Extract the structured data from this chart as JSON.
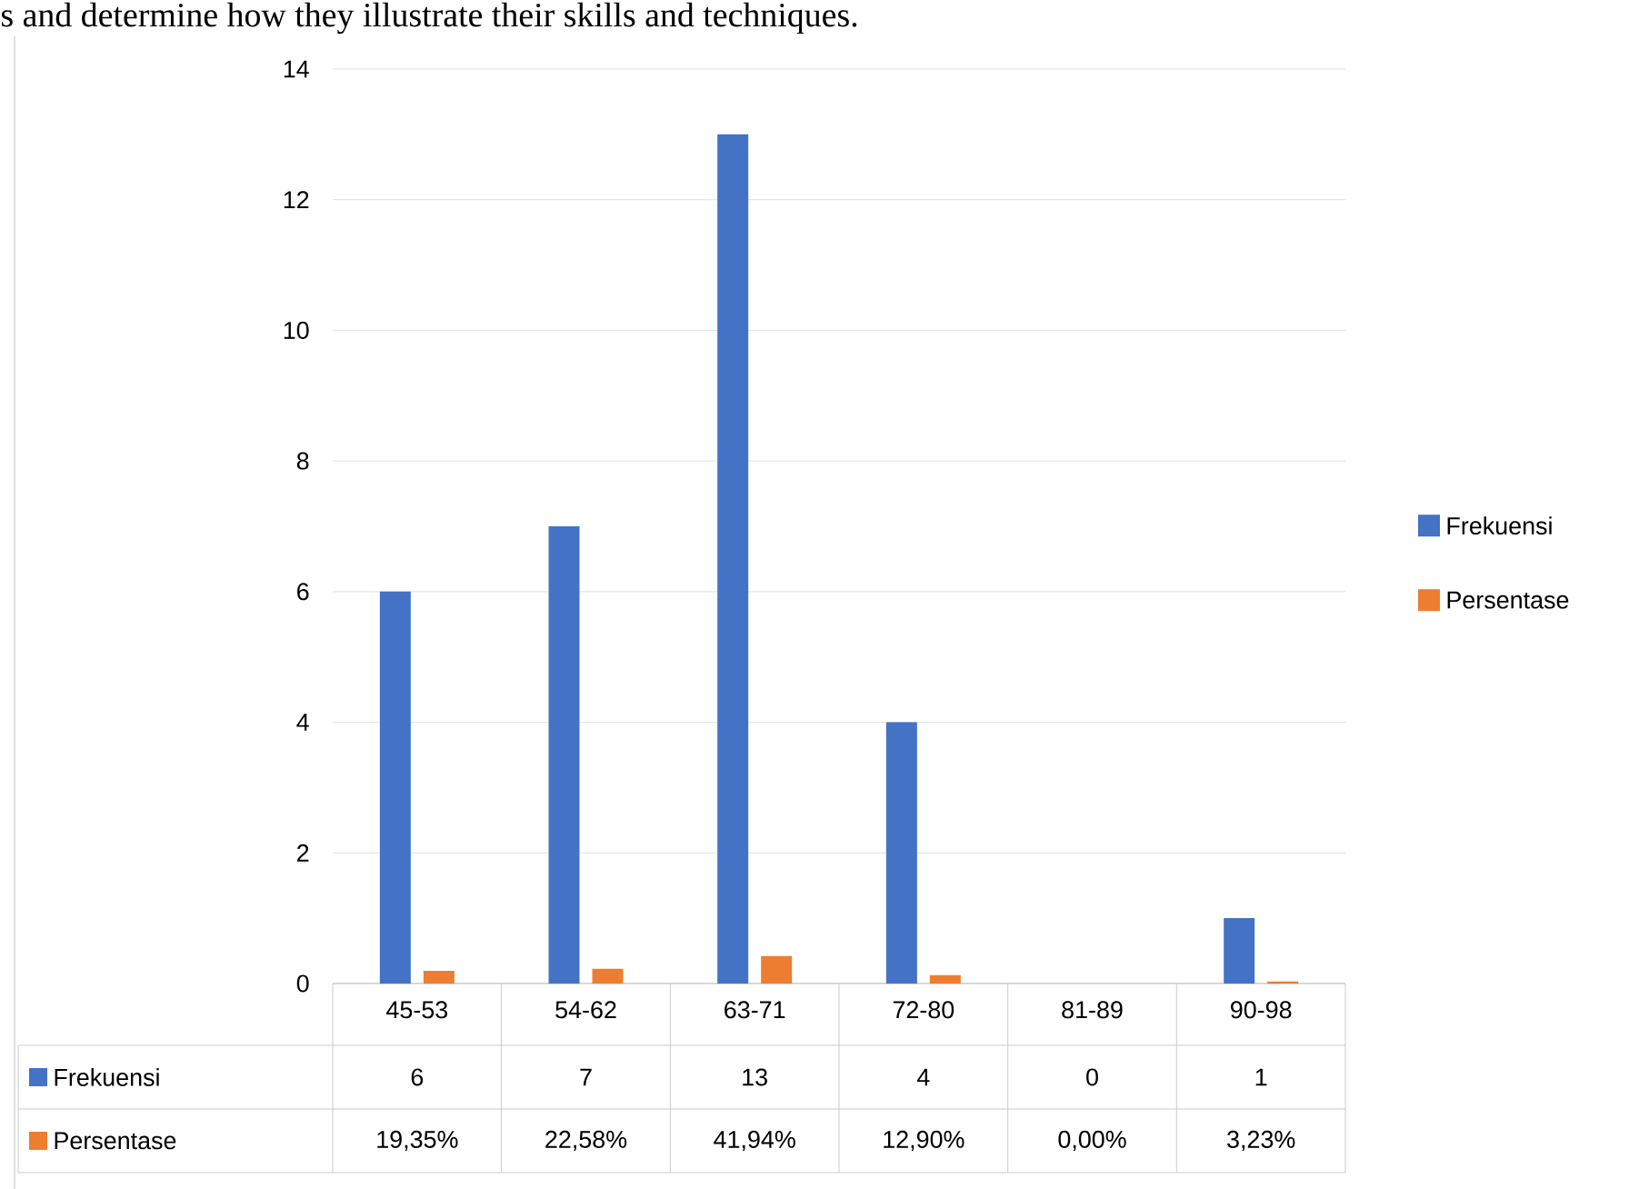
{
  "chart_data": {
    "type": "bar",
    "annotations": [
      "s and determine how they illustrate their skills and techniques."
    ],
    "categories": [
      "45-53",
      "54-62",
      "63-71",
      "72-80",
      "81-89",
      "90-98"
    ],
    "series": [
      {
        "name": "Frekuensi",
        "color": "#4472c4",
        "values": [
          6,
          7,
          13,
          4,
          0,
          1
        ],
        "value_labels": [
          "6",
          "7",
          "13",
          "4",
          "0",
          "1"
        ]
      },
      {
        "name": "Persentase",
        "color": "#ed7d31",
        "values": [
          0.1935,
          0.2258,
          0.4194,
          0.129,
          0,
          0.0323
        ],
        "value_labels": [
          "19,35%",
          "22,58%",
          "41,94%",
          "12,90%",
          "0,00%",
          "3,23%"
        ]
      }
    ],
    "ylim": [
      0,
      14
    ],
    "yticks": [
      0,
      2,
      4,
      6,
      8,
      10,
      12,
      14
    ],
    "grid": "y",
    "legend": "right"
  }
}
